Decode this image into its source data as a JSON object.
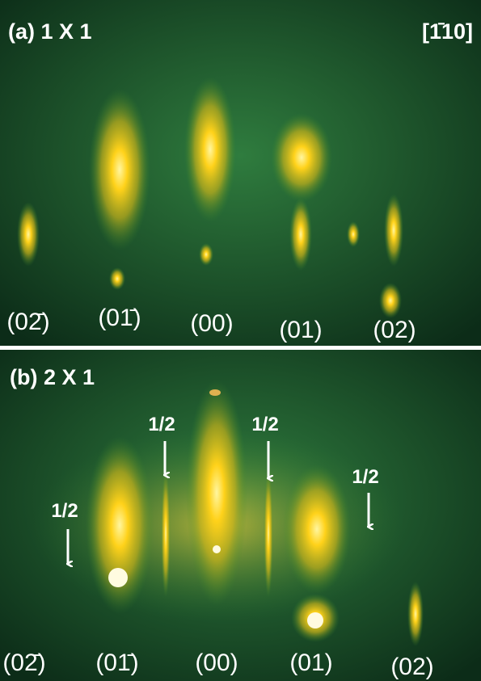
{
  "panels": [
    {
      "title": "(a) 1 X 1",
      "direction": "[1̄10]",
      "spot_labels": [
        "(02̄)",
        "(01̄)",
        "(00)",
        "(01)",
        "(02)"
      ]
    },
    {
      "title": "(b) 2 X 1",
      "half_order_labels": [
        "1/2",
        "1/2",
        "1/2",
        "1/2"
      ],
      "spot_labels": [
        "(02̄)",
        "(01̄)",
        "(00)",
        "(01)",
        "(02)"
      ]
    }
  ]
}
